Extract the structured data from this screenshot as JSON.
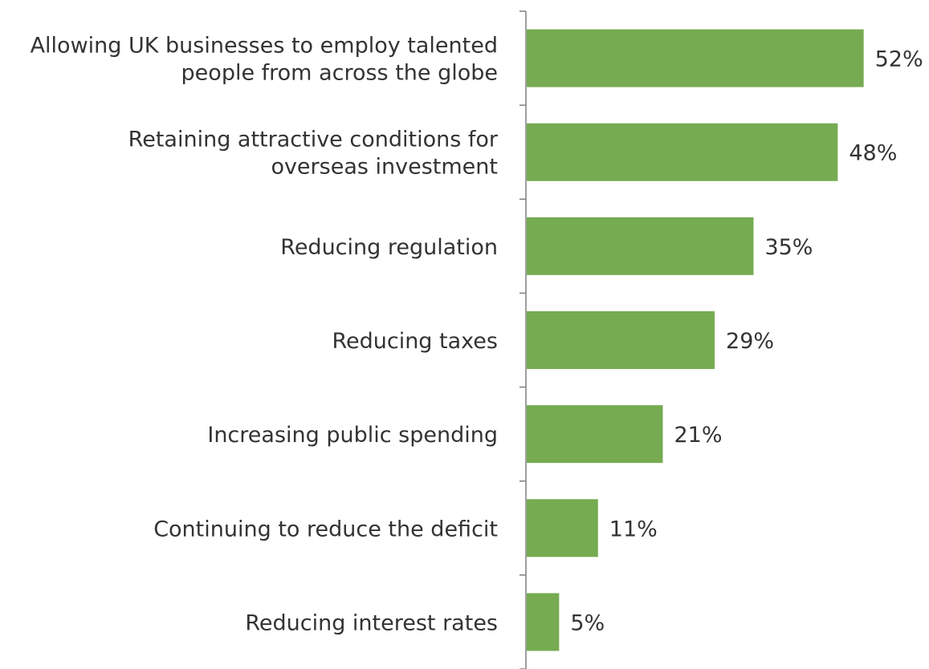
{
  "chart_data": {
    "type": "bar",
    "orientation": "horizontal",
    "categories": [
      [
        "Allowing UK businesses to employ talented",
        "people from across the globe"
      ],
      [
        "Retaining attractive conditions for",
        "overseas investment"
      ],
      [
        "Reducing regulation"
      ],
      [
        "Reducing taxes"
      ],
      [
        "Increasing public spending"
      ],
      [
        "Continuing to reduce the deficit"
      ],
      [
        "Reducing interest rates"
      ]
    ],
    "values": [
      52,
      48,
      35,
      29,
      21,
      11,
      5
    ],
    "value_labels": [
      "52%",
      "48%",
      "35%",
      "29%",
      "21%",
      "11%",
      "5%"
    ],
    "bar_color": "#76AB51",
    "axis_color": "#808080",
    "grid": false,
    "title": "",
    "xlabel": "",
    "ylabel": ""
  }
}
